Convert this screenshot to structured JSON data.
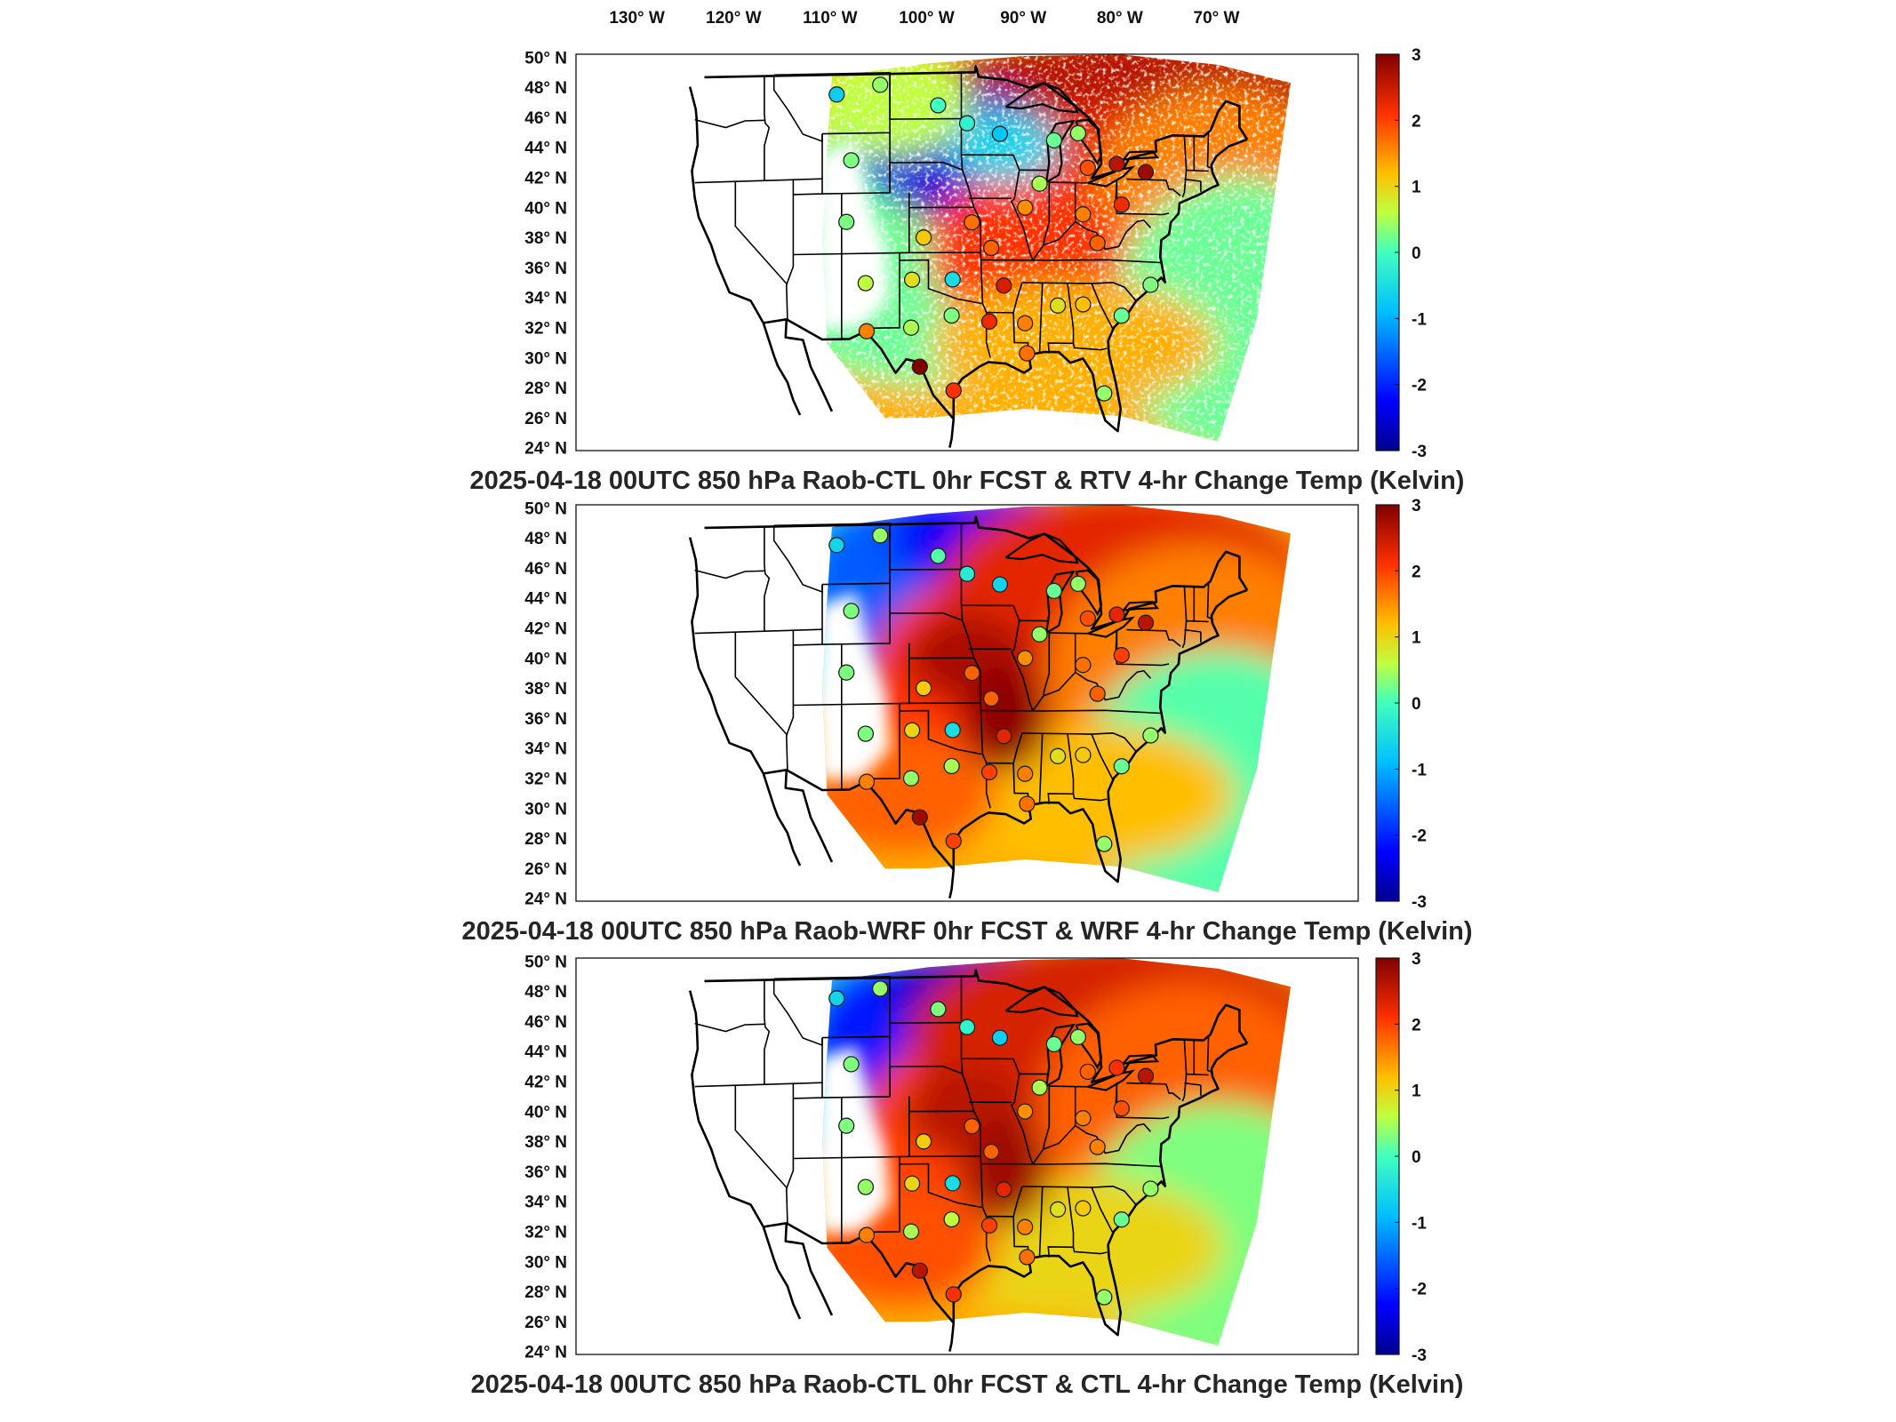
{
  "lon_labels": [
    "130° W",
    "120° W",
    "110° W",
    "100° W",
    "90° W",
    "80° W",
    "70° W"
  ],
  "lat_labels": [
    "50° N",
    "48° N",
    "46° N",
    "44° N",
    "42° N",
    "40° N",
    "38° N",
    "36° N",
    "34° N",
    "32° N",
    "30° N",
    "28° N",
    "26° N",
    "24° N"
  ],
  "colorbar": {
    "ticks": [
      "3",
      "2",
      "1",
      "0",
      "-1",
      "-2",
      "-3"
    ],
    "range": [
      -3,
      3
    ],
    "colormap": [
      "#00008f",
      "#0000ff",
      "#00bfff",
      "#40ffbf",
      "#bfff40",
      "#ffbf00",
      "#ff3000",
      "#800000"
    ]
  },
  "panels": [
    {
      "title": "2025-04-18 00UTC 850 hPa Raob-CTL 0hr FCST & RTV 4-hr Change Temp (Kelvin)",
      "field": "RTV 4-hr change",
      "stations": [
        {
          "lon": -109.5,
          "lat": 47.6,
          "value": -0.7
        },
        {
          "lon": -105.0,
          "lat": 48.2,
          "value": 0.4
        },
        {
          "lon": -99.0,
          "lat": 46.8,
          "value": 0.0
        },
        {
          "lon": -96.0,
          "lat": 45.6,
          "value": -0.2
        },
        {
          "lon": -92.6,
          "lat": 44.9,
          "value": -0.8
        },
        {
          "lon": -87.0,
          "lat": 44.5,
          "value": 0.2
        },
        {
          "lon": -84.5,
          "lat": 45.0,
          "value": 0.4
        },
        {
          "lon": -83.5,
          "lat": 42.7,
          "value": 1.9
        },
        {
          "lon": -80.5,
          "lat": 43.0,
          "value": 2.6
        },
        {
          "lon": -77.5,
          "lat": 42.5,
          "value": 2.8
        },
        {
          "lon": -88.5,
          "lat": 41.6,
          "value": 0.5
        },
        {
          "lon": -90.0,
          "lat": 40.0,
          "value": 1.5
        },
        {
          "lon": -84.0,
          "lat": 39.6,
          "value": 1.6
        },
        {
          "lon": -80.0,
          "lat": 40.3,
          "value": 2.2
        },
        {
          "lon": -108.0,
          "lat": 43.2,
          "value": 0.3
        },
        {
          "lon": -108.5,
          "lat": 39.1,
          "value": 0.3
        },
        {
          "lon": -100.5,
          "lat": 38.0,
          "value": 1.1
        },
        {
          "lon": -95.5,
          "lat": 39.0,
          "value": 1.7
        },
        {
          "lon": -93.5,
          "lat": 37.3,
          "value": 1.8
        },
        {
          "lon": -82.5,
          "lat": 37.7,
          "value": 1.8
        },
        {
          "lon": -106.5,
          "lat": 35.0,
          "value": 0.6
        },
        {
          "lon": -101.7,
          "lat": 35.2,
          "value": 0.9
        },
        {
          "lon": -97.5,
          "lat": 35.2,
          "value": -0.5
        },
        {
          "lon": -92.2,
          "lat": 34.8,
          "value": 2.4
        },
        {
          "lon": -86.6,
          "lat": 33.5,
          "value": 0.9
        },
        {
          "lon": -84.0,
          "lat": 33.6,
          "value": 1.2
        },
        {
          "lon": -80.0,
          "lat": 32.9,
          "value": 0.2
        },
        {
          "lon": -77.0,
          "lat": 35.0,
          "value": 0.3
        },
        {
          "lon": -97.6,
          "lat": 32.8,
          "value": 0.3
        },
        {
          "lon": -101.8,
          "lat": 32.0,
          "value": 0.5
        },
        {
          "lon": -106.4,
          "lat": 31.8,
          "value": 1.6
        },
        {
          "lon": -93.7,
          "lat": 32.4,
          "value": 2.2
        },
        {
          "lon": -90.0,
          "lat": 32.3,
          "value": 1.6
        },
        {
          "lon": -89.8,
          "lat": 30.3,
          "value": 1.7
        },
        {
          "lon": -100.9,
          "lat": 29.4,
          "value": 3.0
        },
        {
          "lon": -97.4,
          "lat": 27.8,
          "value": 2.1
        },
        {
          "lon": -81.8,
          "lat": 27.7,
          "value": 0.4
        }
      ]
    },
    {
      "title": "2025-04-18 00UTC 850 hPa Raob-WRF 0hr FCST & WRF 4-hr Change Temp (Kelvin)",
      "field": "WRF 4-hr change",
      "stations": [
        {
          "lon": -109.5,
          "lat": 47.6,
          "value": -0.6
        },
        {
          "lon": -105.0,
          "lat": 48.2,
          "value": 0.4
        },
        {
          "lon": -99.0,
          "lat": 46.8,
          "value": 0.1
        },
        {
          "lon": -96.0,
          "lat": 45.6,
          "value": -0.3
        },
        {
          "lon": -92.6,
          "lat": 44.9,
          "value": -0.6
        },
        {
          "lon": -87.0,
          "lat": 44.5,
          "value": 0.2
        },
        {
          "lon": -84.5,
          "lat": 45.0,
          "value": 0.4
        },
        {
          "lon": -83.5,
          "lat": 42.7,
          "value": 1.9
        },
        {
          "lon": -80.5,
          "lat": 43.0,
          "value": 2.3
        },
        {
          "lon": -77.5,
          "lat": 42.5,
          "value": 2.6
        },
        {
          "lon": -88.5,
          "lat": 41.6,
          "value": 0.4
        },
        {
          "lon": -90.0,
          "lat": 40.0,
          "value": 1.5
        },
        {
          "lon": -84.0,
          "lat": 39.6,
          "value": 1.7
        },
        {
          "lon": -80.0,
          "lat": 40.3,
          "value": 2.0
        },
        {
          "lon": -108.0,
          "lat": 43.2,
          "value": 0.3
        },
        {
          "lon": -108.5,
          "lat": 39.1,
          "value": 0.3
        },
        {
          "lon": -100.5,
          "lat": 38.0,
          "value": 1.1
        },
        {
          "lon": -95.5,
          "lat": 39.0,
          "value": 1.8
        },
        {
          "lon": -93.5,
          "lat": 37.3,
          "value": 1.8
        },
        {
          "lon": -82.5,
          "lat": 37.7,
          "value": 1.8
        },
        {
          "lon": -106.5,
          "lat": 35.0,
          "value": 0.3
        },
        {
          "lon": -101.7,
          "lat": 35.2,
          "value": 1.0
        },
        {
          "lon": -97.5,
          "lat": 35.2,
          "value": -0.5
        },
        {
          "lon": -92.2,
          "lat": 34.8,
          "value": 2.3
        },
        {
          "lon": -86.6,
          "lat": 33.5,
          "value": 0.9
        },
        {
          "lon": -84.0,
          "lat": 33.6,
          "value": 1.1
        },
        {
          "lon": -80.0,
          "lat": 32.9,
          "value": 0.2
        },
        {
          "lon": -77.0,
          "lat": 35.0,
          "value": 0.4
        },
        {
          "lon": -97.6,
          "lat": 32.8,
          "value": 0.5
        },
        {
          "lon": -101.8,
          "lat": 32.0,
          "value": 0.4
        },
        {
          "lon": -106.4,
          "lat": 31.8,
          "value": 1.6
        },
        {
          "lon": -93.7,
          "lat": 32.4,
          "value": 2.0
        },
        {
          "lon": -90.0,
          "lat": 32.3,
          "value": 1.6
        },
        {
          "lon": -89.8,
          "lat": 30.3,
          "value": 1.7
        },
        {
          "lon": -100.9,
          "lat": 29.4,
          "value": 2.8
        },
        {
          "lon": -97.4,
          "lat": 27.8,
          "value": 2.0
        },
        {
          "lon": -81.8,
          "lat": 27.7,
          "value": 0.4
        }
      ]
    },
    {
      "title": "2025-04-18 00UTC 850 hPa Raob-CTL 0hr FCST & CTL 4-hr Change Temp (Kelvin)",
      "field": "CTL 4-hr change",
      "stations": [
        {
          "lon": -109.5,
          "lat": 47.6,
          "value": -0.6
        },
        {
          "lon": -105.0,
          "lat": 48.2,
          "value": 0.4
        },
        {
          "lon": -99.0,
          "lat": 46.8,
          "value": 0.3
        },
        {
          "lon": -96.0,
          "lat": 45.6,
          "value": -0.2
        },
        {
          "lon": -92.6,
          "lat": 44.9,
          "value": -0.7
        },
        {
          "lon": -87.0,
          "lat": 44.5,
          "value": 0.2
        },
        {
          "lon": -84.5,
          "lat": 45.0,
          "value": 0.4
        },
        {
          "lon": -83.5,
          "lat": 42.7,
          "value": 1.8
        },
        {
          "lon": -80.5,
          "lat": 43.0,
          "value": 2.1
        },
        {
          "lon": -77.5,
          "lat": 42.5,
          "value": 2.6
        },
        {
          "lon": -88.5,
          "lat": 41.6,
          "value": 0.5
        },
        {
          "lon": -90.0,
          "lat": 40.0,
          "value": 1.5
        },
        {
          "lon": -84.0,
          "lat": 39.6,
          "value": 1.6
        },
        {
          "lon": -80.0,
          "lat": 40.3,
          "value": 1.9
        },
        {
          "lon": -108.0,
          "lat": 43.2,
          "value": 0.3
        },
        {
          "lon": -108.5,
          "lat": 39.1,
          "value": 0.3
        },
        {
          "lon": -100.5,
          "lat": 38.0,
          "value": 1.1
        },
        {
          "lon": -95.5,
          "lat": 39.0,
          "value": 1.8
        },
        {
          "lon": -93.5,
          "lat": 37.3,
          "value": 1.8
        },
        {
          "lon": -82.5,
          "lat": 37.7,
          "value": 1.6
        },
        {
          "lon": -106.5,
          "lat": 35.0,
          "value": 0.4
        },
        {
          "lon": -101.7,
          "lat": 35.2,
          "value": 1.0
        },
        {
          "lon": -97.5,
          "lat": 35.2,
          "value": -0.5
        },
        {
          "lon": -92.2,
          "lat": 34.8,
          "value": 2.3
        },
        {
          "lon": -86.6,
          "lat": 33.5,
          "value": 0.9
        },
        {
          "lon": -84.0,
          "lat": 33.6,
          "value": 1.1
        },
        {
          "lon": -80.0,
          "lat": 32.9,
          "value": 0.2
        },
        {
          "lon": -77.0,
          "lat": 35.0,
          "value": 0.4
        },
        {
          "lon": -97.6,
          "lat": 32.8,
          "value": 0.6
        },
        {
          "lon": -101.8,
          "lat": 32.0,
          "value": 0.5
        },
        {
          "lon": -106.4,
          "lat": 31.8,
          "value": 1.6
        },
        {
          "lon": -93.7,
          "lat": 32.4,
          "value": 2.0
        },
        {
          "lon": -90.0,
          "lat": 32.3,
          "value": 1.6
        },
        {
          "lon": -89.8,
          "lat": 30.3,
          "value": 1.7
        },
        {
          "lon": -100.9,
          "lat": 29.4,
          "value": 2.6
        },
        {
          "lon": -97.4,
          "lat": 27.8,
          "value": 2.1
        },
        {
          "lon": -81.8,
          "lat": 27.7,
          "value": 0.4
        }
      ]
    }
  ]
}
